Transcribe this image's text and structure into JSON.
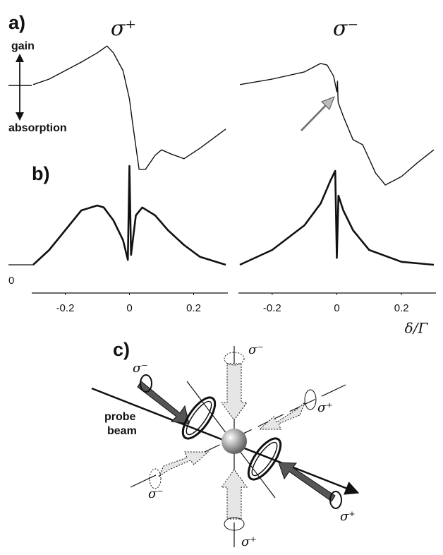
{
  "panel_labels": {
    "a": "a)",
    "b": "b)",
    "c": "c)"
  },
  "annotations": {
    "gain": "gain",
    "absorption": "absorption"
  },
  "chart_data": [
    {
      "type": "line",
      "title": "σ⁺",
      "color": "#111111",
      "xlim": [
        -0.3,
        0.3
      ],
      "ylim": [
        -2.4,
        1.1
      ],
      "x": [
        -0.3,
        -0.25,
        -0.2,
        -0.15,
        -0.1,
        -0.07,
        -0.05,
        -0.02,
        0,
        0.01,
        0.03,
        0.05,
        0.08,
        0.1,
        0.13,
        0.17,
        0.22,
        0.3
      ],
      "values": [
        0.02,
        0.15,
        0.35,
        0.55,
        0.77,
        0.93,
        0.77,
        0.35,
        -0.32,
        -0.9,
        -1.98,
        -1.98,
        -1.65,
        -1.52,
        -1.62,
        -1.73,
        -1.48,
        -1.03
      ]
    },
    {
      "type": "line",
      "title": "σ⁻",
      "color": "#111111",
      "xlim": [
        -0.3,
        0.3
      ],
      "ylim": [
        -2.4,
        1.1
      ],
      "x": [
        -0.3,
        -0.2,
        -0.1,
        -0.05,
        -0.03,
        -0.01,
        0,
        0.002,
        0.004,
        0.02,
        0.05,
        0.08,
        0.12,
        0.15,
        0.2,
        0.25,
        0.3
      ],
      "values": [
        0.02,
        0.15,
        0.32,
        0.52,
        0.48,
        0.22,
        -0.15,
        0.1,
        -0.4,
        -0.73,
        -1.28,
        -1.4,
        -2.07,
        -2.35,
        -2.15,
        -1.82,
        -1.52
      ]
    },
    {
      "type": "line",
      "color": "#111111",
      "xlim": [
        -0.3,
        0.3
      ],
      "ylim": [
        0,
        1
      ],
      "yticks": [
        0
      ],
      "xticks": [
        -0.2,
        0,
        0.2
      ],
      "x": [
        -0.3,
        -0.25,
        -0.2,
        -0.15,
        -0.1,
        -0.08,
        -0.05,
        -0.02,
        -0.005,
        0,
        0.005,
        0.02,
        0.04,
        0.08,
        0.12,
        0.17,
        0.22,
        0.3
      ],
      "values": [
        0,
        0.15,
        0.35,
        0.55,
        0.6,
        0.58,
        0.45,
        0.25,
        0.05,
        1.0,
        0.1,
        0.5,
        0.58,
        0.5,
        0.35,
        0.2,
        0.08,
        0
      ]
    },
    {
      "type": "line",
      "color": "#111111",
      "xlim": [
        -0.3,
        0.3
      ],
      "ylim": [
        0,
        1
      ],
      "xlabel": "δ/Γ",
      "xticks": [
        -0.2,
        0,
        0.2
      ],
      "x": [
        -0.3,
        -0.2,
        -0.1,
        -0.05,
        -0.02,
        -0.005,
        0,
        0.005,
        0.02,
        0.05,
        0.1,
        0.2,
        0.3
      ],
      "values": [
        0,
        0.15,
        0.4,
        0.62,
        0.85,
        0.95,
        0.07,
        0.7,
        0.55,
        0.35,
        0.15,
        0.03,
        0
      ]
    }
  ],
  "diagram": {
    "probe_beam": [
      "probe",
      "beam"
    ],
    "polarizations": [
      "σ⁻",
      "σ⁻",
      "σ⁺",
      "σ⁻",
      "σ⁺",
      "σ⁺"
    ]
  }
}
